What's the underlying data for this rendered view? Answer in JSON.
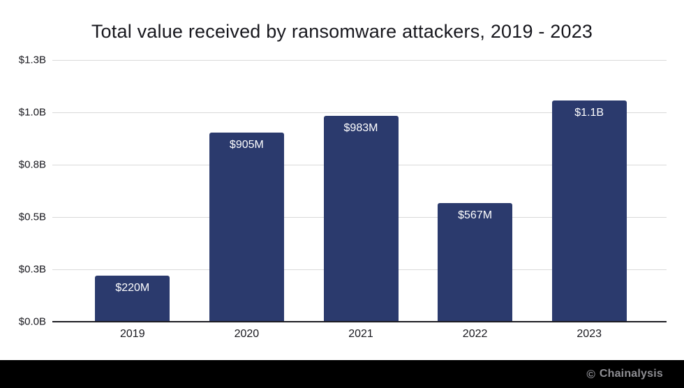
{
  "chart_data": {
    "type": "bar",
    "title": "Total value received by ransomware attackers, 2019 - 2023",
    "categories": [
      "2019",
      "2020",
      "2021",
      "2022",
      "2023"
    ],
    "values_usd_millions": [
      220,
      905,
      983,
      567,
      1056
    ],
    "bar_labels": [
      "$220M",
      "$905M",
      "$983M",
      "$567M",
      "$1.1B"
    ],
    "y_ticks": [
      {
        "value_usd_millions": 0,
        "label": "$0.0B"
      },
      {
        "value_usd_millions": 250,
        "label": "$0.3B"
      },
      {
        "value_usd_millions": 500,
        "label": "$0.5B"
      },
      {
        "value_usd_millions": 750,
        "label": "$0.8B"
      },
      {
        "value_usd_millions": 1000,
        "label": "$1.0B"
      },
      {
        "value_usd_millions": 1250,
        "label": "$1.3B"
      }
    ],
    "ylim_usd_millions": [
      0,
      1250
    ],
    "xlabel": "",
    "ylabel": "",
    "grid": true,
    "legend_position": "none",
    "bar_color": "#2b3a6d",
    "bar_label_color": "#ffffff",
    "axis_text_color": "#17171d",
    "gridline_color": "#d9d9d9",
    "baseline_color": "#1c1c22"
  },
  "footer": {
    "copyright_mark": "©",
    "brand": "Chainalysis",
    "background": "#000000",
    "text_color": "#8e8e93"
  }
}
